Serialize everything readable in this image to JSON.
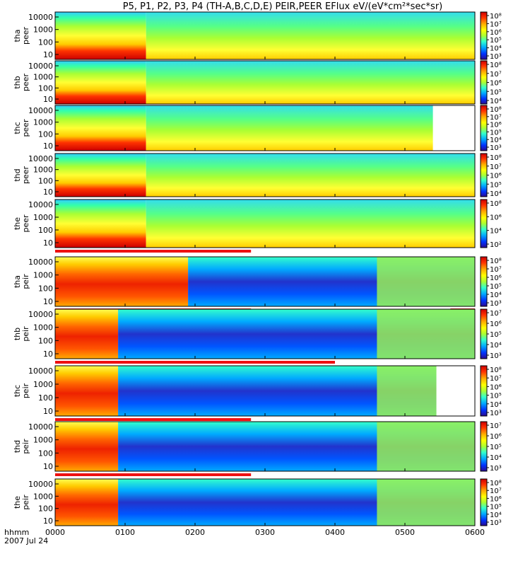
{
  "title": "P5, P1, P2, P3, P4 (TH-A,B,C,D,E) PEIR,PEER EFlux eV/(eV*cm²*sec*sr)",
  "colors": {
    "quality_bar": "#ee1111",
    "background": "#ffffff",
    "colormap": [
      "#2a0a8f",
      "#0033ff",
      "#00a8ff",
      "#33ffcc",
      "#aaff33",
      "#ffff00",
      "#ffaa00",
      "#ff3300",
      "#cc0000"
    ]
  },
  "chart_data": [
    {
      "type": "heatmap",
      "id": "tha-peer",
      "ylabel": [
        "tha",
        "peer"
      ],
      "yticks": [
        "10000",
        "1000",
        "100",
        "10"
      ],
      "cbar_ticks": [
        "10⁸",
        "10⁷",
        "10⁶",
        "10⁵",
        "10⁴",
        "10³"
      ],
      "quality_bar": [],
      "blank_after_hr": null,
      "description_values": {
        "low_energy_log10_flux_0_2h": 7.8,
        "mid_energy_log10_flux_after_2h": 5.4
      }
    },
    {
      "type": "heatmap",
      "id": "thb-peer",
      "ylabel": [
        "thb",
        "peer"
      ],
      "yticks": [
        "10000",
        "1000",
        "100",
        "10"
      ],
      "cbar_ticks": [
        "10⁸",
        "10⁷",
        "10⁶",
        "10⁵",
        "10⁴"
      ],
      "quality_bar": [],
      "blank_after_hr": null,
      "description_values": {
        "low_energy_log10_flux_0_0.6h": 7.5,
        "mid_energy_log10_flux_after_1h": 5.6
      }
    },
    {
      "type": "heatmap",
      "id": "thc-peer",
      "ylabel": [
        "thc",
        "peer"
      ],
      "yticks": [
        "10000",
        "1000",
        "100",
        "10"
      ],
      "cbar_ticks": [
        "10⁸",
        "10⁷",
        "10⁶",
        "10⁵",
        "10⁴",
        "10³"
      ],
      "quality_bar": [],
      "blank_after_hr": 5.4,
      "description_values": {
        "low_energy_log10_flux_0_1h": 7.8,
        "mid_energy_log10_flux_after_1h": 5.6
      }
    },
    {
      "type": "heatmap",
      "id": "thd-peer",
      "ylabel": [
        "thd",
        "peer"
      ],
      "yticks": [
        "10000",
        "1000",
        "100",
        "10"
      ],
      "cbar_ticks": [
        "10⁸",
        "10⁷",
        "10⁶",
        "10⁵",
        "10⁴"
      ],
      "quality_bar": [],
      "blank_after_hr": null,
      "description_values": {
        "low_energy_log10_flux_0_1h": 7.8,
        "mid_energy_log10_flux_after_1h": 5.6
      }
    },
    {
      "type": "heatmap",
      "id": "the-peer",
      "ylabel": [
        "the",
        "peer"
      ],
      "yticks": [
        "10000",
        "1000",
        "100",
        "10"
      ],
      "cbar_ticks": [
        "10⁸",
        "10⁶",
        "10⁴",
        "10²"
      ],
      "quality_bar": [
        [
          0.0,
          2.8
        ]
      ],
      "blank_after_hr": null,
      "description_values": {
        "low_energy_log10_flux_0_1h": 7.8,
        "mid_energy_log10_flux_after_1h": 5.6
      }
    },
    {
      "type": "heatmap",
      "id": "tha-peir",
      "ylabel": [
        "tha",
        "peir"
      ],
      "yticks": [
        "10000",
        "1000",
        "100",
        "10"
      ],
      "cbar_ticks": [
        "10⁸",
        "10⁷",
        "10⁶",
        "10⁵",
        "10⁴",
        "10³"
      ],
      "quality_bar": [
        [
          0.0,
          2.8
        ],
        [
          5.65,
          6.0
        ]
      ],
      "blank_after_hr": null,
      "description_values": {
        "log10_flux_0_1.9h": 7.6,
        "log10_flux_after_2h": 3.9
      }
    },
    {
      "type": "heatmap",
      "id": "thb-peir",
      "ylabel": [
        "thb",
        "peir"
      ],
      "yticks": [
        "10000",
        "1000",
        "100",
        "10"
      ],
      "cbar_ticks": [
        "10⁷",
        "10⁶",
        "10⁵",
        "10⁴",
        "10³"
      ],
      "quality_bar": [
        [
          0.0,
          4.0
        ]
      ],
      "blank_after_hr": null,
      "description_values": {
        "log10_flux_0_0.5h": 6.0,
        "log10_flux_after_5h": 6.0
      }
    },
    {
      "type": "heatmap",
      "id": "thc-peir",
      "ylabel": [
        "thc",
        "peir"
      ],
      "yticks": [
        "10000",
        "1000",
        "100",
        "10"
      ],
      "cbar_ticks": [
        "10⁸",
        "10⁷",
        "10⁶",
        "10⁵",
        "10⁴",
        "10³"
      ],
      "quality_bar": [
        [
          0.0,
          2.8
        ]
      ],
      "blank_after_hr": 5.45,
      "description_values": {
        "log10_flux_0_0.6h": 7.0,
        "log10_flux_after_4.5h": 5.8
      }
    },
    {
      "type": "heatmap",
      "id": "thd-peir",
      "ylabel": [
        "thd",
        "peir"
      ],
      "yticks": [
        "10000",
        "1000",
        "100",
        "10"
      ],
      "cbar_ticks": [
        "10⁷",
        "10⁶",
        "10⁵",
        "10⁴",
        "10³"
      ],
      "quality_bar": [
        [
          0.0,
          2.8
        ]
      ],
      "blank_after_hr": null,
      "description_values": {
        "log10_flux_0_0.6h": 7.0,
        "log10_flux_after_4.5h": 5.8
      }
    },
    {
      "type": "heatmap",
      "id": "the-peir",
      "ylabel": [
        "the",
        "peir"
      ],
      "yticks": [
        "10000",
        "1000",
        "100",
        "10"
      ],
      "cbar_ticks": [
        "10⁸",
        "10⁷",
        "10⁶",
        "10⁵",
        "10⁴",
        "10³"
      ],
      "quality_bar": [],
      "blank_after_hr": null,
      "description_values": {
        "log10_flux_0_0.6h": 7.2,
        "log10_flux_after_4.5h": 5.8
      }
    }
  ],
  "x_axis": {
    "unit_label": "hhmm",
    "date_label": "2007 Jul 24",
    "range_hours": [
      0,
      6
    ],
    "ticks": [
      {
        "hr": 0,
        "label": "0000"
      },
      {
        "hr": 1,
        "label": "0100"
      },
      {
        "hr": 2,
        "label": "0200"
      },
      {
        "hr": 3,
        "label": "0300"
      },
      {
        "hr": 4,
        "label": "0400"
      },
      {
        "hr": 5,
        "label": "0500"
      },
      {
        "hr": 6,
        "label": "0600"
      }
    ]
  }
}
